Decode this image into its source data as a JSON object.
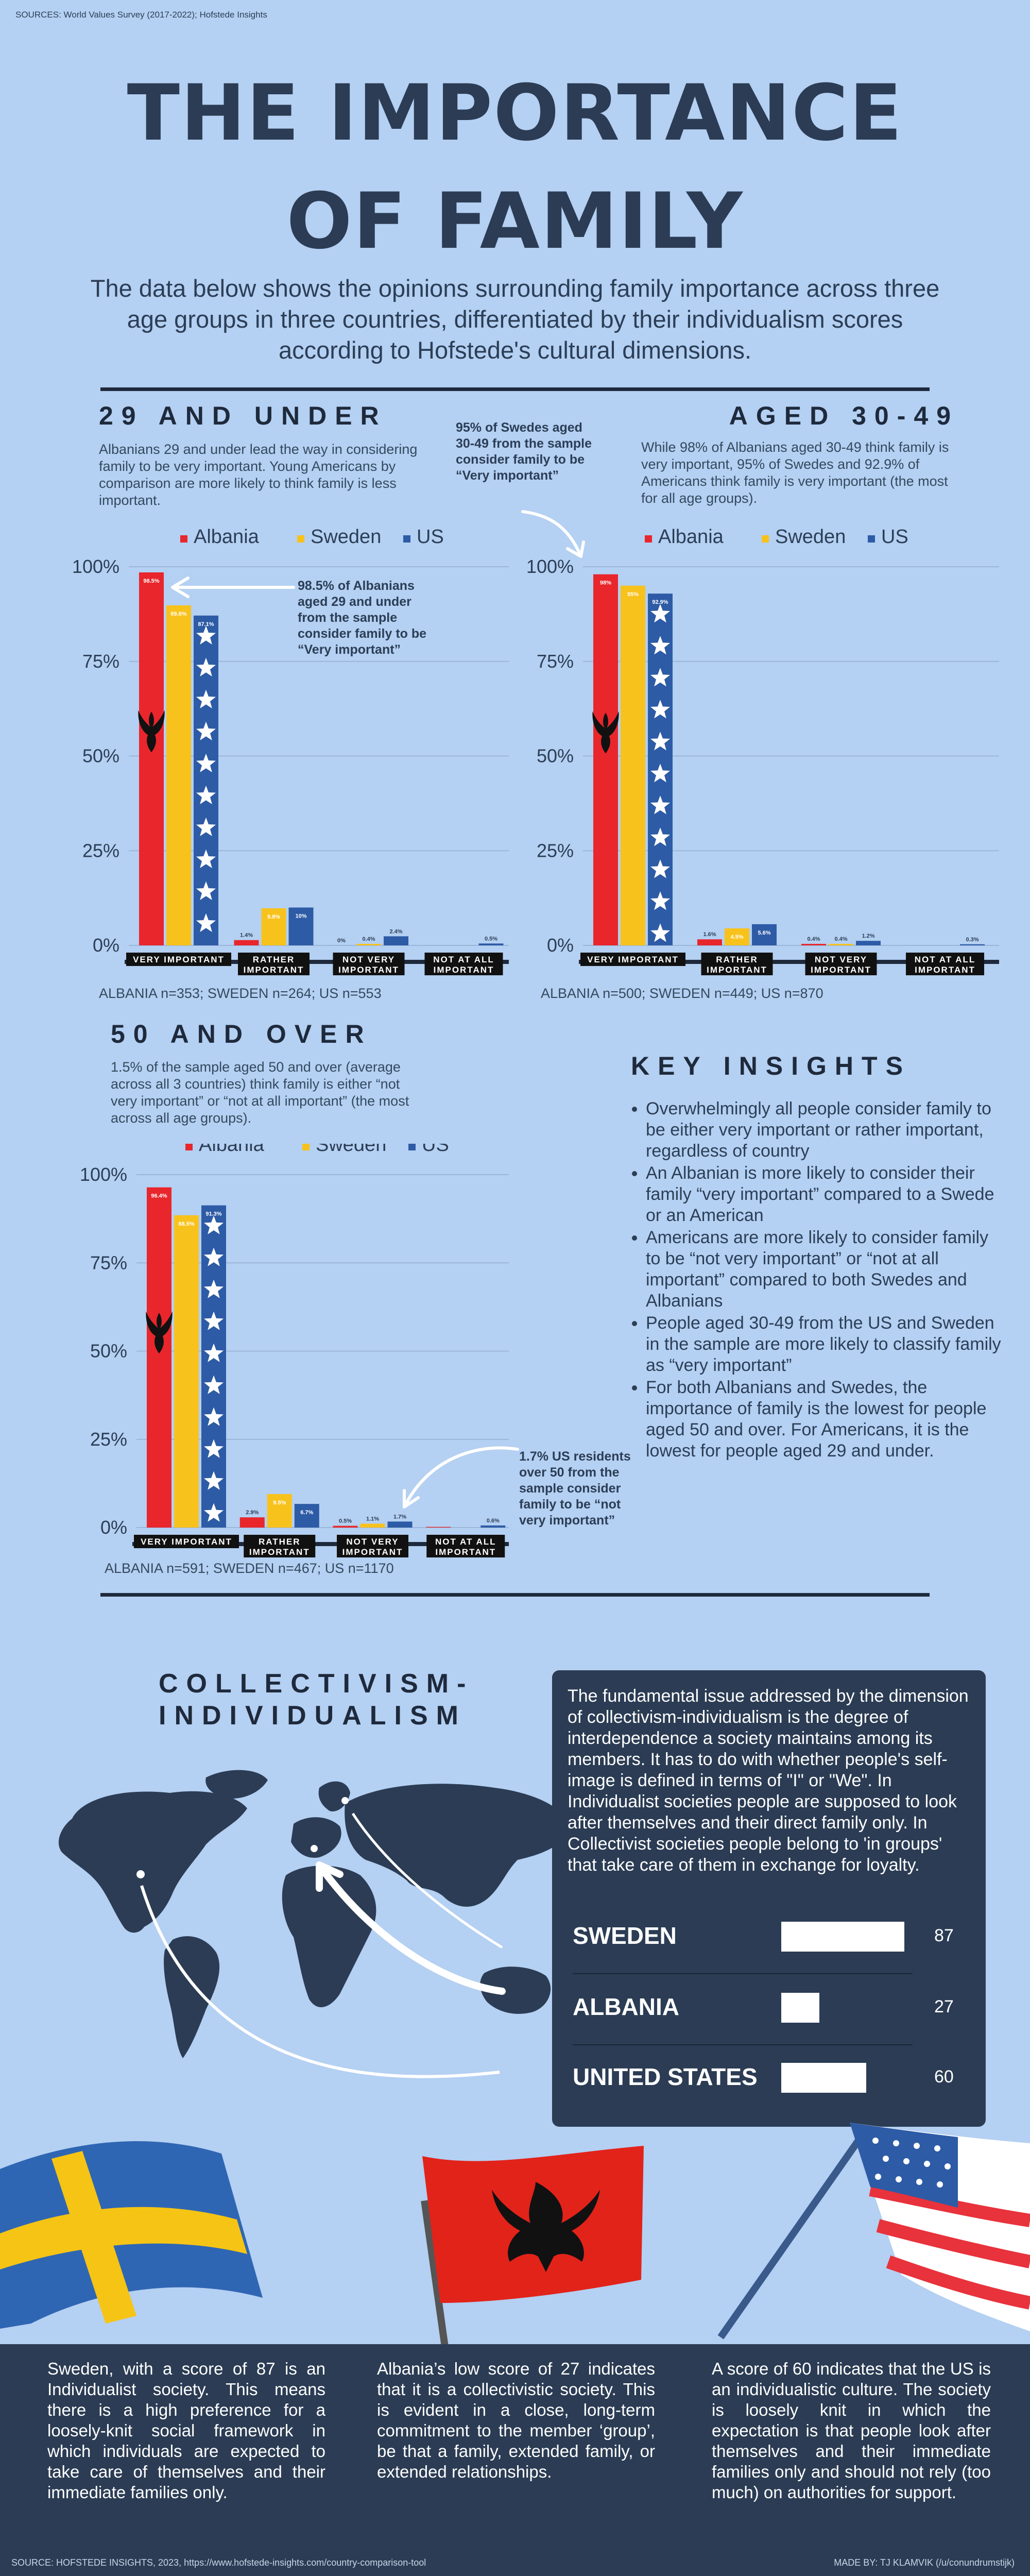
{
  "header": {
    "sources": "SOURCES:  World Values Survey (2017-2022); Hofstede Insights",
    "title_line1": "THE IMPORTANCE",
    "title_line2": "OF FAMILY",
    "intro": "The data below shows the opinions surrounding family importance across three age groups in three countries, differentiated by their individualism scores according to Hofstede's cultural dimensions."
  },
  "sections": {
    "under29": {
      "heading": "29 AND UNDER",
      "description": "Albanians 29 and under lead the way in considering family to be very important. Young Americans by comparison are more likely to think family is less important.",
      "annotation": "98.5% of Albanians aged 29 and under from the sample consider family to be “Very important”",
      "sample": "ALBANIA n=353; SWEDEN n=264; US n=553"
    },
    "aged3049": {
      "heading": "AGED 30-49",
      "description": "While 98% of Albanians aged 30-49 think family is very important, 95% of Swedes and 92.9% of Americans think family is very important (the most for all age groups).",
      "annotation": "95% of Swedes aged 30-49 from the sample consider family to be “Very important”",
      "sample": "ALBANIA n=500; SWEDEN n=449; US n=870"
    },
    "over50": {
      "heading": "50 AND OVER",
      "description": "1.5% of the sample aged 50 and over (average across all 3 countries) think family is either “not very important” or “not at all important” (the most across all age groups).",
      "annotation": "1.7% US residents over 50 from the sample consider family to be “not very important”",
      "sample": "ALBANIA n=591; SWEDEN n=467; US n=1170"
    },
    "insights": {
      "heading": "KEY INSIGHTS",
      "items": [
        "Overwhelmingly all people consider family to be either very important or rather important, regardless of country",
        "An Albanian is more likely to consider their family “very important” compared to a Swede or an American",
        "Americans are more likely to consider family to be “not very important” or “not at all important” compared to both Swedes and Albanians",
        "People aged 30-49 from the US and Sweden in the sample are more likely to classify family as “very important”",
        "For both Albanians and Swedes, the importance of family is the lowest for people aged 50 and over. For Americans, it is the lowest for people aged 29 and under."
      ]
    }
  },
  "chart_data": [
    {
      "type": "bar",
      "categories": [
        "VERY IMPORTANT",
        "RATHER IMPORTANT",
        "NOT VERY IMPORTANT",
        "NOT AT ALL IMPORTANT"
      ],
      "series": [
        {
          "name": "Albania",
          "values": [
            98.5,
            1.4,
            0.0,
            0.0
          ],
          "labels": [
            "98.5%",
            "1.4%",
            "0%",
            ""
          ]
        },
        {
          "name": "Sweden",
          "values": [
            89.8,
            9.8,
            0.4,
            0.0
          ],
          "labels": [
            "89.8%",
            "9.8%",
            "0.4%",
            ""
          ]
        },
        {
          "name": "US",
          "values": [
            87.1,
            10.0,
            2.4,
            0.5
          ],
          "labels": [
            "87.1%",
            "10%",
            "2.4%",
            "0.5%"
          ]
        }
      ],
      "ylim": [
        0,
        100
      ],
      "yticks": [
        "0%",
        "25%",
        "50%",
        "75%",
        "100%"
      ],
      "legend": "top"
    },
    {
      "type": "bar",
      "categories": [
        "VERY IMPORTANT",
        "RATHER IMPORTANT",
        "NOT VERY IMPORTANT",
        "NOT AT ALL IMPORTANT"
      ],
      "series": [
        {
          "name": "Albania",
          "values": [
            98.0,
            1.6,
            0.4,
            0.0
          ],
          "labels": [
            "98%",
            "1.6%",
            "0.4%",
            ""
          ]
        },
        {
          "name": "Sweden",
          "values": [
            95.0,
            4.5,
            0.4,
            0.0
          ],
          "labels": [
            "95%",
            "4.5%",
            "0.4%",
            ""
          ]
        },
        {
          "name": "US",
          "values": [
            92.9,
            5.6,
            1.2,
            0.3
          ],
          "labels": [
            "92.9%",
            "5.6%",
            "1.2%",
            "0.3%"
          ]
        }
      ],
      "ylim": [
        0,
        100
      ],
      "yticks": [
        "0%",
        "25%",
        "50%",
        "75%",
        "100%"
      ],
      "legend": "top"
    },
    {
      "type": "bar",
      "categories": [
        "VERY IMPORTANT",
        "RATHER IMPORTANT",
        "NOT VERY IMPORTANT",
        "NOT AT ALL IMPORTANT"
      ],
      "series": [
        {
          "name": "Albania",
          "values": [
            96.4,
            2.9,
            0.5,
            0.2
          ],
          "labels": [
            "96.4%",
            "2.9%",
            "0.5%",
            ""
          ]
        },
        {
          "name": "Sweden",
          "values": [
            88.5,
            9.5,
            1.1,
            0.0
          ],
          "labels": [
            "88.5%",
            "9.5%",
            "1.1%",
            ""
          ]
        },
        {
          "name": "US",
          "values": [
            91.3,
            6.7,
            1.7,
            0.6
          ],
          "labels": [
            "91.3%",
            "6.7%",
            "1.7%",
            "0.6%"
          ]
        }
      ],
      "ylim": [
        0,
        100
      ],
      "yticks": [
        "0%",
        "25%",
        "50%",
        "75%",
        "100%"
      ],
      "legend": "top"
    },
    {
      "type": "bar",
      "categories": [
        "SWEDEN",
        "ALBANIA",
        "UNITED STATES"
      ],
      "values": [
        87,
        27,
        60
      ],
      "ylim": [
        0,
        100
      ]
    }
  ],
  "colors": {
    "albania": "#e8262c",
    "sweden": "#f8c21c",
    "us": "#2d5ba6",
    "dark": "#2b3c54"
  },
  "collectivism": {
    "heading_line1": "COLLECTIVISM-",
    "heading_line2": "INDIVIDUALISM",
    "panel_text": "The fundamental issue addressed by the dimension of collectivism-individualism is the degree of interdependence a society maintains among its members. It has to do with whether people's self-image is defined in terms of \"I\" or \"We\". In Individualist societies people are supposed to look after themselves and their direct family only. In Collectivist societies people belong to 'in groups' that take care of them in exchange for loyalty.",
    "scores": [
      {
        "country": "SWEDEN",
        "score": "87"
      },
      {
        "country": "ALBANIA",
        "score": "27"
      },
      {
        "country": "UNITED STATES",
        "score": "60"
      }
    ]
  },
  "bottom": {
    "sweden": "Sweden, with a score of 87 is an Individualist society. This means there is a high preference for a loosely-knit social framework in which individuals are expected to take care of themselves and their immediate families only.",
    "albania": "Albania’s low score of 27 indicates that it is a collectivistic society. This is evident in a close, long-term commitment to the member ‘group’, be that a family, extended family, or extended relationships.",
    "us": "A score of 60 indicates that the US is an individualistic culture. The society is loosely knit in which the expectation is that people look after themselves and their immediate families only and should not rely (too much) on authorities for support.",
    "source": "SOURCE: HOFSTEDE INSIGHTS, 2023, https://www.hofstede-insights.com/country-comparison-tool",
    "credit": "MADE BY: TJ KLAMVIK (/u/conundrumstijk)"
  }
}
